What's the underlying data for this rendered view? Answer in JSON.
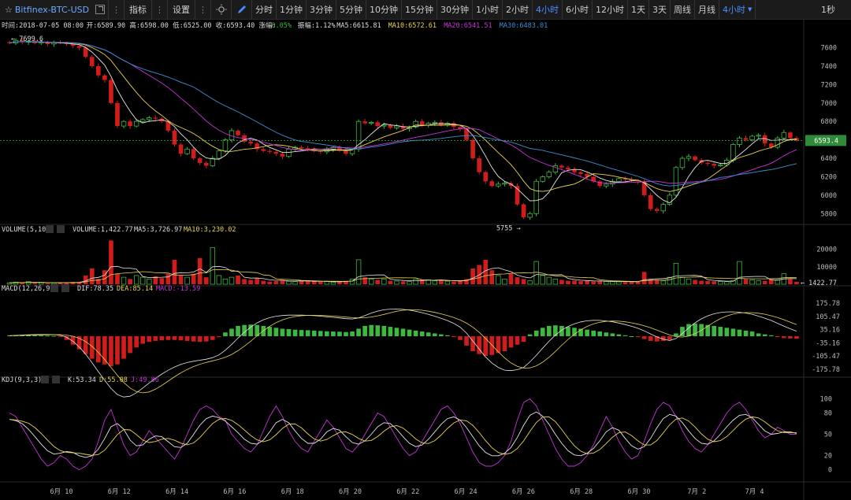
{
  "toolbar": {
    "symbol": "Bitfinex-BTC-USD",
    "indicators_label": "指标",
    "settings_label": "设置",
    "periods": [
      {
        "label": "分时",
        "active": false
      },
      {
        "label": "1分钟",
        "active": false
      },
      {
        "label": "3分钟",
        "active": false
      },
      {
        "label": "5分钟",
        "active": false
      },
      {
        "label": "10分钟",
        "active": false
      },
      {
        "label": "15分钟",
        "active": false
      },
      {
        "label": "30分钟",
        "active": false
      },
      {
        "label": "1小时",
        "active": false
      },
      {
        "label": "2小时",
        "active": false
      },
      {
        "label": "4小时",
        "active": true
      },
      {
        "label": "6小时",
        "active": false
      },
      {
        "label": "12小时",
        "active": false
      },
      {
        "label": "1天",
        "active": false
      },
      {
        "label": "3天",
        "active": false
      },
      {
        "label": "周线",
        "active": false
      },
      {
        "label": "月线",
        "active": false
      }
    ],
    "period_dropdown": "4小时",
    "refresh_rate": "1秒"
  },
  "colors": {
    "up": "#3fb83f",
    "down": "#d11c1c",
    "ma5": "#e6e6e6",
    "ma10": "#e8d44d",
    "ma20": "#c534d6",
    "ma30": "#3e8ed6",
    "k": "#e6e6e6",
    "d": "#e8d44d",
    "j": "#c534d6",
    "last_price_bg": "#2e8b3a"
  },
  "info": {
    "time": "时间:2018-07-05 08:00",
    "open": "开:6589.90",
    "high": "高:6598.00",
    "low": "低:6525.00",
    "close": "收:6593.40",
    "change": "涨幅:",
    "change_val": "0.05%",
    "amplitude": "振幅:1.12%",
    "ma5": "MA5:6615.81",
    "ma10": "MA10:6572.61",
    "ma20": "MA20:6541.51",
    "ma30": "MA30:6483.01"
  },
  "volume_info": {
    "title": "VOLUME(5,10)",
    "volume": "VOLUME:1,422.77",
    "ma5": "MA5:3,726.97",
    "ma10": "MA10:3,230.02"
  },
  "macd_info": {
    "title": "MACD(12,26,9)",
    "dif": "DIF:78.35",
    "dea": "DEA:85.14",
    "macd": "MACD:-13.59"
  },
  "kdj_info": {
    "title": "KDJ(9,3,3)",
    "k": "K:53.34",
    "d": "D:55.08",
    "j": "J:49.86"
  },
  "price_axis": [
    "7600",
    "7400",
    "7200",
    "7000",
    "6800",
    "6600",
    "6400",
    "6200",
    "6000",
    "5800"
  ],
  "last_price": "6593.4",
  "high_mark": "7699.6",
  "low_mark": "5755",
  "volume_axis": [
    "20000",
    "10000"
  ],
  "last_volume": "1422.77",
  "macd_axis": [
    "175.78",
    "105.47",
    "35.16",
    "-35.16",
    "-105.47",
    "-175.78"
  ],
  "kdj_axis": [
    "100",
    "80",
    "50",
    "20",
    "0"
  ],
  "date_axis": [
    "6月 10",
    "6月 12",
    "6月 14",
    "6月 16",
    "6月 18",
    "6月 20",
    "6月 22",
    "6月 24",
    "6月 26",
    "6月 28",
    "6月 30",
    "7月 2",
    "7月 4"
  ],
  "chart_data": {
    "type": "candlestick",
    "interval": "4小时",
    "x_start": "2018-06-09",
    "x_end": "2018-07-05 08:00",
    "price_ylim": [
      5700,
      7750
    ],
    "price_path": [
      7650,
      7680,
      7660,
      7670,
      7650,
      7660,
      7640,
      7655,
      7650,
      7640,
      7620,
      7600,
      7500,
      7400,
      7300,
      7250,
      7000,
      6750,
      6800,
      6750,
      6800,
      6820,
      6840,
      6830,
      6800,
      6700,
      6550,
      6450,
      6500,
      6400,
      6350,
      6320,
      6400,
      6480,
      6600,
      6700,
      6650,
      6580,
      6560,
      6500,
      6480,
      6470,
      6450,
      6420,
      6500,
      6520,
      6510,
      6500,
      6480,
      6470,
      6500,
      6520,
      6480,
      6450,
      6500,
      6800,
      6780,
      6790,
      6750,
      6760,
      6730,
      6750,
      6720,
      6740,
      6800,
      6760,
      6780,
      6790,
      6760,
      6780,
      6740,
      6720,
      6600,
      6400,
      6250,
      6150,
      6100,
      6120,
      6130,
      6100,
      5900,
      5760,
      5800,
      6150,
      6200,
      6250,
      6320,
      6300,
      6280,
      6250,
      6230,
      6200,
      6150,
      6100,
      6120,
      6150,
      6180,
      6170,
      6160,
      6150,
      6000,
      5850,
      5830,
      5900,
      6000,
      6300,
      6400,
      6420,
      6380,
      6350,
      6340,
      6320,
      6330,
      6380,
      6550,
      6620,
      6600,
      6640,
      6650,
      6560,
      6520,
      6620,
      6680,
      6620,
      6593.4
    ],
    "volume_ylim": [
      0,
      27000
    ],
    "volume_path": [
      800,
      1200,
      900,
      1500,
      700,
      1000,
      600,
      800,
      1100,
      900,
      1300,
      1200,
      5000,
      9000,
      3000,
      8000,
      25000,
      6000,
      4000,
      3000,
      5000,
      4000,
      3000,
      4500,
      3500,
      6000,
      14000,
      5000,
      4000,
      6000,
      15000,
      4000,
      21000,
      5000,
      3000,
      4000,
      5000,
      3000,
      2500,
      3500,
      2000,
      1500,
      1800,
      2500,
      1700,
      1500,
      2000,
      1800,
      1600,
      1400,
      1500,
      1200,
      1600,
      2000,
      3000,
      14000,
      4000,
      3000,
      2500,
      3000,
      2000,
      1800,
      1600,
      1500,
      3000,
      2800,
      2500,
      2000,
      2200,
      1800,
      1500,
      2000,
      3000,
      9000,
      11000,
      14000,
      8000,
      5000,
      3000,
      6000,
      4000,
      3000,
      2000,
      13000,
      5000,
      4000,
      3000,
      2500,
      2000,
      2200,
      1800,
      2000,
      1500,
      1800,
      1600,
      1500,
      1400,
      1300,
      1200,
      1600,
      7000,
      3000,
      2500,
      2000,
      4000,
      12000,
      4000,
      3000,
      2500,
      2000,
      1800,
      1700,
      1600,
      1500,
      2000,
      13000,
      3000,
      2500,
      2000,
      1800,
      3000,
      2500,
      6000,
      3000,
      1422.77
    ],
    "macd_ylim": [
      -210,
      210
    ],
    "macd_hist": [
      5,
      5,
      5,
      5,
      4,
      4,
      3,
      2,
      -5,
      -20,
      -45,
      -70,
      -95,
      -120,
      -140,
      -150,
      -160,
      -150,
      -120,
      -90,
      -60,
      -40,
      -30,
      -25,
      -22,
      -20,
      -20,
      -22,
      -25,
      -28,
      -30,
      -28,
      -20,
      -5,
      20,
      40,
      55,
      60,
      62,
      60,
      55,
      50,
      45,
      40,
      38,
      35,
      33,
      32,
      30,
      28,
      26,
      25,
      24,
      22,
      25,
      40,
      55,
      60,
      58,
      55,
      50,
      45,
      40,
      35,
      30,
      25,
      20,
      15,
      10,
      5,
      -5,
      -20,
      -50,
      -80,
      -95,
      -105,
      -100,
      -90,
      -80,
      -60,
      -45,
      -30,
      10,
      30,
      45,
      55,
      58,
      55,
      50,
      45,
      40,
      35,
      30,
      25,
      20,
      15,
      10,
      5,
      0,
      -5,
      -15,
      -25,
      -28,
      -25,
      -20,
      15,
      50,
      65,
      68,
      65,
      60,
      55,
      50,
      45,
      40,
      35,
      30,
      25,
      15,
      10,
      5,
      -5,
      -10,
      -12,
      -13.59
    ],
    "kdj_ylim": [
      -15,
      115
    ],
    "kdj_j": [
      80,
      75,
      60,
      45,
      30,
      15,
      5,
      10,
      20,
      15,
      5,
      0,
      5,
      15,
      40,
      70,
      85,
      60,
      35,
      20,
      25,
      40,
      55,
      45,
      35,
      25,
      15,
      30,
      50,
      70,
      85,
      90,
      85,
      75,
      70,
      50,
      40,
      30,
      25,
      35,
      55,
      75,
      90,
      75,
      55,
      40,
      30,
      25,
      40,
      55,
      70,
      60,
      45,
      30,
      25,
      35,
      50,
      65,
      80,
      75,
      60,
      45,
      30,
      20,
      25,
      40,
      55,
      70,
      85,
      90,
      80,
      65,
      45,
      25,
      10,
      5,
      5,
      10,
      20,
      40,
      70,
      95,
      100,
      90,
      70,
      50,
      30,
      15,
      5,
      5,
      10,
      20,
      35,
      55,
      75,
      60,
      40,
      25,
      15,
      20,
      40,
      65,
      85,
      95,
      90,
      75,
      55,
      40,
      30,
      25,
      35,
      50,
      65,
      80,
      90,
      95,
      85,
      70,
      55,
      45,
      50,
      60,
      55,
      50,
      49.86
    ],
    "last": {
      "time": "2018-07-05 08:00",
      "open": 6589.9,
      "high": 6598.0,
      "low": 6525.0,
      "close": 6593.4,
      "ma5": 6615.81,
      "ma10": 6572.61,
      "ma20": 6541.51,
      "ma30": 6483.01,
      "volume": 1422.77,
      "volume_ma5": 3726.97,
      "volume_ma10": 3230.02,
      "dif": 78.35,
      "dea": 85.14,
      "macd": -13.59,
      "k": 53.34,
      "d": 55.08,
      "j": 49.86
    }
  }
}
